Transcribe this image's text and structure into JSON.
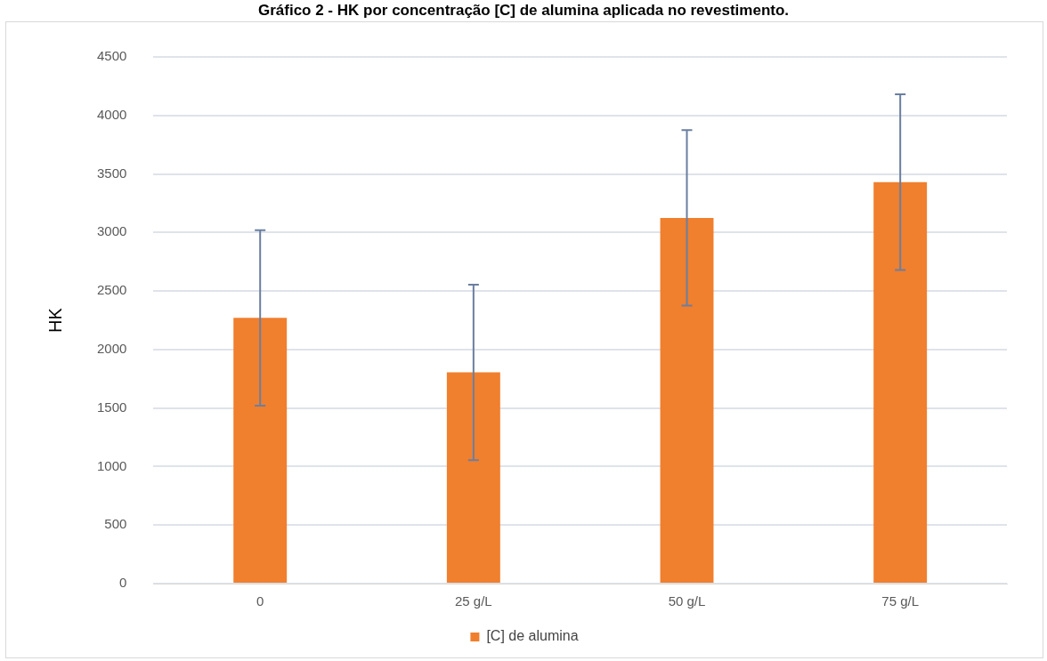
{
  "chart_data": {
    "type": "bar",
    "title": "Gráfico 2 - HK por concentração [C] de alumina aplicada no revestimento.",
    "ylabel": "HK",
    "categories": [
      "0",
      "25 g/L",
      "50 g/L",
      "75 g/L"
    ],
    "series": [
      {
        "name": "[C] de alumina",
        "color": "#f07f2e",
        "values": [
          2270,
          1805,
          3125,
          3430
        ],
        "errors": [
          750,
          750,
          750,
          750
        ]
      }
    ],
    "ylim": [
      0,
      4500
    ],
    "yticks": [
      0,
      500,
      1000,
      1500,
      2000,
      2500,
      3000,
      3500,
      4000,
      4500
    ],
    "grid": "y",
    "legend": "bottom"
  }
}
